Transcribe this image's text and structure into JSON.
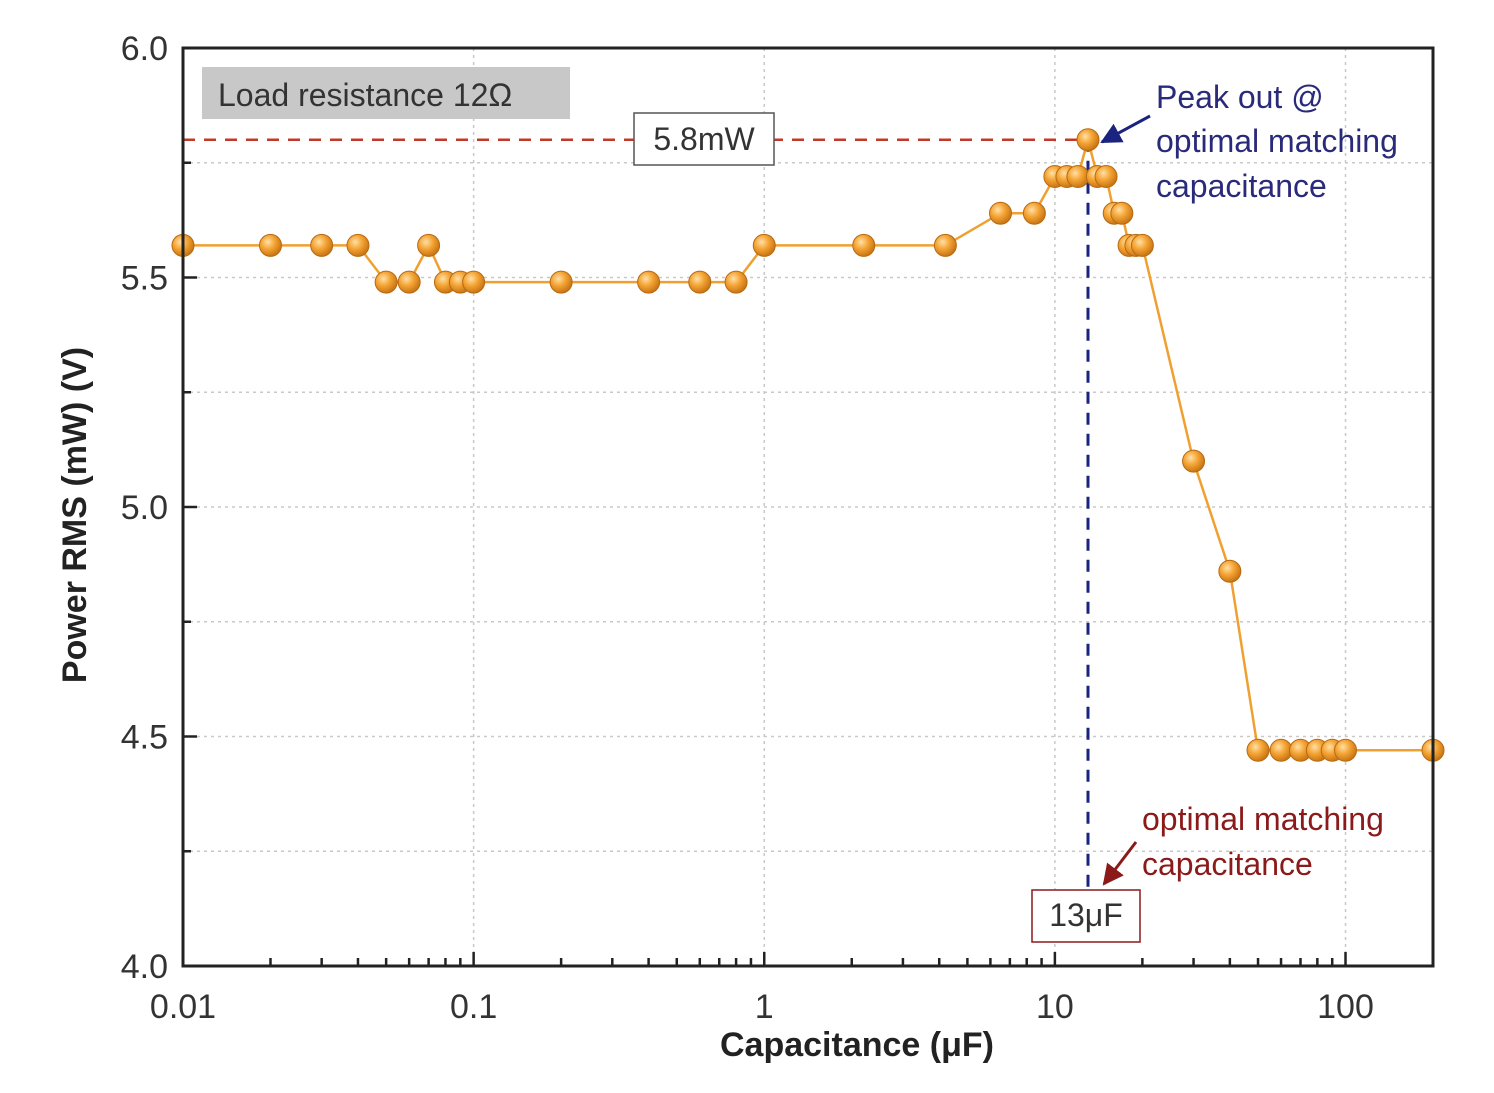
{
  "chart_data": {
    "type": "line",
    "xscale": "log",
    "xlabel": "Capacitance (μF)",
    "ylabel": "Power RMS (mW) (V)",
    "xlim": [
      0.01,
      200
    ],
    "ylim": [
      4.0,
      6.0
    ],
    "x_tick_labels": [
      {
        "value": 0.01,
        "label": "0.01"
      },
      {
        "value": 0.1,
        "label": "0.1"
      },
      {
        "value": 1,
        "label": "1"
      },
      {
        "value": 10,
        "label": "10"
      },
      {
        "value": 100,
        "label": "100"
      }
    ],
    "y_tick_labels": [
      {
        "value": 4.0,
        "label": "4.0"
      },
      {
        "value": 4.5,
        "label": "4.5"
      },
      {
        "value": 5.0,
        "label": "5.0"
      },
      {
        "value": 5.5,
        "label": "5.5"
      },
      {
        "value": 6.0,
        "label": "6.0"
      }
    ],
    "grid": true,
    "series": [
      {
        "name": "Power RMS",
        "color": "#f0a030",
        "x": [
          0.01,
          0.02,
          0.03,
          0.04,
          0.05,
          0.06,
          0.07,
          0.08,
          0.09,
          0.1,
          0.2,
          0.4,
          0.6,
          0.8,
          1,
          2.2,
          4.2,
          6.5,
          8.5,
          10,
          11,
          12,
          13,
          14,
          15,
          16,
          17,
          18,
          19,
          20,
          30,
          40,
          50,
          60,
          70,
          80,
          90,
          100,
          200
        ],
        "y": [
          5.57,
          5.57,
          5.57,
          5.57,
          5.49,
          5.49,
          5.57,
          5.49,
          5.49,
          5.49,
          5.49,
          5.49,
          5.49,
          5.49,
          5.57,
          5.57,
          5.57,
          5.64,
          5.64,
          5.72,
          5.72,
          5.72,
          5.8,
          5.72,
          5.72,
          5.64,
          5.64,
          5.57,
          5.57,
          5.57,
          5.1,
          4.86,
          4.47,
          4.47,
          4.47,
          4.47,
          4.47,
          4.47,
          4.47
        ]
      }
    ],
    "annotations": {
      "load_label": "Load resistance 12Ω",
      "peak_value_label": "5.8mW",
      "peak_value": 5.8,
      "peak_note_line1": "Peak out @",
      "peak_note_line2": "optimal matching",
      "peak_note_line3": "capacitance",
      "optimal_capacitance_value": 13,
      "optimal_capacitance_label": "13μF",
      "optimal_note_line1": "optimal matching",
      "optimal_note_line2": "capacitance"
    },
    "colors": {
      "peak_note": "#2a2a7a",
      "optimal_note": "#8b1a1a",
      "peak_line": "#c0392b",
      "cap_line": "#1a237e"
    }
  }
}
